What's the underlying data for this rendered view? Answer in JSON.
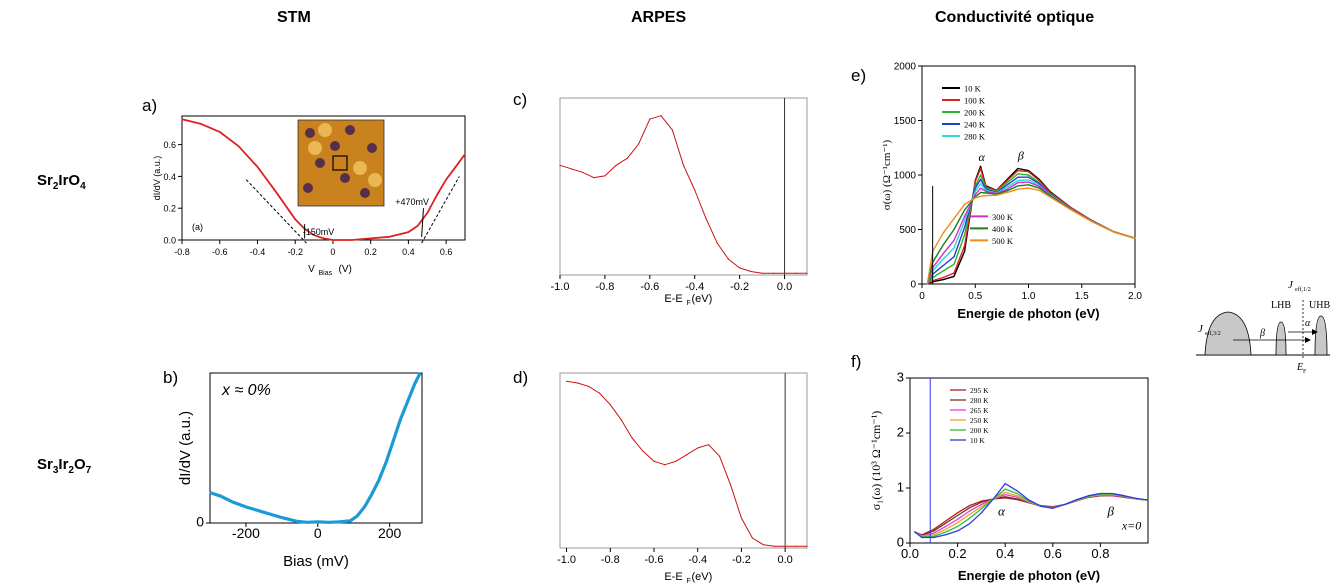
{
  "column_headers": [
    "STM",
    "ARPES",
    "Conductivité optique"
  ],
  "row_headers": [
    {
      "base": "Sr",
      "sub1": "2",
      "mid": "IrO",
      "sub2": "4"
    },
    {
      "base": "Sr",
      "sub1": "3",
      "mid": "Ir",
      "sub2": "2",
      "end": "O",
      "sub3": "7"
    }
  ],
  "panel_labels": [
    "a)",
    "b)",
    "c)",
    "d)",
    "e)",
    "f)"
  ],
  "chart_data": [
    {
      "id": "a",
      "type": "line",
      "xlabel": "V",
      "xlabel_sub": "Bias",
      "xlabel_unit": "(V)",
      "ylabel": "dI/dV (a.u.)",
      "xlim": [
        -0.8,
        0.7
      ],
      "ylim": [
        0.0,
        0.78
      ],
      "xticks": [
        "-0.8",
        "-0.6",
        "-0.4",
        "-0.2",
        "0",
        "0.2",
        "0.4",
        "0.6"
      ],
      "yticks": [
        "0.0",
        "0.2",
        "0.4",
        "0.6"
      ],
      "inset_label": "(a)",
      "annotations": [
        "-150mV",
        "+470mV"
      ],
      "series": [
        {
          "color": "#e02020",
          "x": [
            -0.8,
            -0.7,
            -0.6,
            -0.5,
            -0.4,
            -0.3,
            -0.2,
            -0.15,
            -0.1,
            -0.05,
            0.0,
            0.1,
            0.2,
            0.3,
            0.4,
            0.45,
            0.5,
            0.55,
            0.6,
            0.65,
            0.7
          ],
          "y": [
            0.76,
            0.73,
            0.68,
            0.59,
            0.46,
            0.3,
            0.13,
            0.07,
            0.03,
            0.01,
            0.0,
            0.0,
            0.01,
            0.02,
            0.05,
            0.09,
            0.17,
            0.28,
            0.38,
            0.46,
            0.54
          ]
        }
      ]
    },
    {
      "id": "b",
      "type": "line",
      "xlabel": "Bias (mV)",
      "ylabel": "dI/dV (a.u.)",
      "xlim": [
        -300,
        290
      ],
      "ylim": [
        0,
        4.2
      ],
      "xticks": [
        "-200",
        "0",
        "200"
      ],
      "yticks": [
        "0"
      ],
      "legend_text": "x ≈ 0%",
      "series": [
        {
          "color": "#1b9ad6",
          "x": [
            -300,
            -270,
            -240,
            -200,
            -150,
            -100,
            -60,
            -30,
            0,
            30,
            60,
            90,
            110,
            130,
            150,
            170,
            190,
            210,
            230,
            250,
            270,
            285
          ],
          "y": [
            0.85,
            0.75,
            0.6,
            0.45,
            0.3,
            0.15,
            0.05,
            0.02,
            0.03,
            0.02,
            0.03,
            0.06,
            0.2,
            0.45,
            0.8,
            1.2,
            1.7,
            2.3,
            2.9,
            3.4,
            3.9,
            4.2
          ]
        }
      ]
    },
    {
      "id": "c",
      "type": "line",
      "xlabel": "E-E",
      "xlabel_sub": "F",
      "xlabel_unit": " (eV)",
      "xlim": [
        -1.0,
        0.1
      ],
      "ylim": [
        0,
        1.0
      ],
      "xticks": [
        "-1.0",
        "-0.8",
        "-0.6",
        "-0.4",
        "-0.2",
        "0.0"
      ],
      "series": [
        {
          "color": "#cc1111",
          "x": [
            -1.0,
            -0.95,
            -0.9,
            -0.85,
            -0.8,
            -0.75,
            -0.7,
            -0.65,
            -0.6,
            -0.55,
            -0.5,
            -0.45,
            -0.4,
            -0.35,
            -0.3,
            -0.25,
            -0.2,
            -0.15,
            -0.1,
            -0.05,
            0.0,
            0.05,
            0.1
          ],
          "y": [
            0.62,
            0.6,
            0.58,
            0.55,
            0.56,
            0.62,
            0.66,
            0.74,
            0.88,
            0.9,
            0.82,
            0.62,
            0.48,
            0.32,
            0.18,
            0.09,
            0.04,
            0.02,
            0.01,
            0.01,
            0.01,
            0.01,
            0.01
          ]
        }
      ]
    },
    {
      "id": "d",
      "type": "line",
      "xlabel": "E-E",
      "xlabel_sub": "F",
      "xlabel_unit": " (eV)",
      "xlim": [
        -1.03,
        0.1
      ],
      "ylim": [
        0,
        1.05
      ],
      "xticks": [
        "-1.0",
        "-0.8",
        "-0.6",
        "-0.4",
        "-0.2",
        "0.0"
      ],
      "series": [
        {
          "color": "#cc1111",
          "x": [
            -1.0,
            -0.95,
            -0.9,
            -0.85,
            -0.8,
            -0.75,
            -0.7,
            -0.65,
            -0.6,
            -0.55,
            -0.5,
            -0.45,
            -0.4,
            -0.35,
            -0.3,
            -0.25,
            -0.2,
            -0.15,
            -0.1,
            -0.05,
            0.0,
            0.05,
            0.1
          ],
          "y": [
            1.0,
            0.99,
            0.97,
            0.93,
            0.86,
            0.77,
            0.66,
            0.58,
            0.52,
            0.5,
            0.52,
            0.56,
            0.6,
            0.62,
            0.55,
            0.38,
            0.18,
            0.06,
            0.02,
            0.01,
            0.01,
            0.01,
            0.01
          ]
        }
      ]
    },
    {
      "id": "e",
      "type": "line",
      "xlabel": "Energie de photon (eV)",
      "ylabel": "σ(ω) (Ω⁻¹cm⁻¹)",
      "xlim": [
        0,
        2.0
      ],
      "ylim": [
        0,
        2000
      ],
      "xticks": [
        "0",
        "0.5",
        "1.0",
        "1.5",
        "2.0"
      ],
      "yticks": [
        "0",
        "500",
        "1000",
        "1500",
        "2000"
      ],
      "peak_labels": [
        "α",
        "β"
      ],
      "series": [
        {
          "name": "10 K",
          "color": "#000000",
          "x": [
            0.05,
            0.1,
            0.2,
            0.3,
            0.4,
            0.5,
            0.55,
            0.6,
            0.7,
            0.8,
            0.9,
            1.0,
            1.1,
            1.2,
            1.4,
            1.6,
            1.8,
            2.0
          ],
          "y": [
            0,
            20,
            40,
            70,
            300,
            950,
            1080,
            900,
            860,
            960,
            1060,
            1040,
            960,
            850,
            700,
            580,
            480,
            420
          ]
        },
        {
          "name": "100 K",
          "color": "#e02020",
          "x": [
            0.05,
            0.1,
            0.2,
            0.3,
            0.4,
            0.5,
            0.55,
            0.6,
            0.7,
            0.8,
            0.9,
            1.0,
            1.1,
            1.2,
            1.4,
            1.6,
            1.8,
            2.0
          ],
          "y": [
            0,
            30,
            60,
            100,
            350,
            940,
            1060,
            890,
            860,
            950,
            1040,
            1030,
            950,
            840,
            700,
            580,
            480,
            420
          ]
        },
        {
          "name": "200 K",
          "color": "#2fb52f",
          "x": [
            0.05,
            0.1,
            0.2,
            0.3,
            0.4,
            0.5,
            0.55,
            0.6,
            0.7,
            0.8,
            0.9,
            1.0,
            1.1,
            1.2,
            1.4,
            1.6,
            1.8,
            2.0
          ],
          "y": [
            0,
            60,
            120,
            180,
            450,
            900,
            1000,
            880,
            850,
            930,
            1010,
            1000,
            930,
            830,
            690,
            575,
            478,
            420
          ]
        },
        {
          "name": "240 K",
          "color": "#2240d0",
          "x": [
            0.05,
            0.1,
            0.2,
            0.3,
            0.4,
            0.5,
            0.55,
            0.6,
            0.7,
            0.8,
            0.9,
            1.0,
            1.1,
            1.2,
            1.4,
            1.6,
            1.8,
            2.0
          ],
          "y": [
            0,
            90,
            170,
            250,
            520,
            880,
            960,
            870,
            840,
            910,
            980,
            980,
            920,
            825,
            690,
            575,
            478,
            420
          ]
        },
        {
          "name": "280 K",
          "color": "#30d6d6",
          "x": [
            0.05,
            0.1,
            0.2,
            0.3,
            0.4,
            0.5,
            0.55,
            0.6,
            0.7,
            0.8,
            0.9,
            1.0,
            1.1,
            1.2,
            1.4,
            1.6,
            1.8,
            2.0
          ],
          "y": [
            0,
            120,
            230,
            330,
            580,
            850,
            920,
            860,
            835,
            890,
            950,
            955,
            905,
            820,
            688,
            574,
            478,
            420
          ]
        },
        {
          "name": "300 K",
          "color": "#d030d0",
          "x": [
            0.05,
            0.1,
            0.2,
            0.3,
            0.4,
            0.5,
            0.55,
            0.6,
            0.7,
            0.8,
            0.9,
            1.0,
            1.1,
            1.2,
            1.4,
            1.6,
            1.8,
            2.0
          ],
          "y": [
            0,
            150,
            280,
            400,
            620,
            820,
            880,
            850,
            830,
            870,
            930,
            935,
            895,
            815,
            686,
            573,
            478,
            420
          ]
        },
        {
          "name": "400 K",
          "color": "#1e7d1e",
          "x": [
            0.05,
            0.1,
            0.2,
            0.3,
            0.4,
            0.5,
            0.55,
            0.6,
            0.7,
            0.8,
            0.9,
            1.0,
            1.1,
            1.2,
            1.4,
            1.6,
            1.8,
            2.0
          ],
          "y": [
            0,
            200,
            360,
            500,
            680,
            800,
            840,
            835,
            825,
            855,
            900,
            910,
            880,
            810,
            684,
            572,
            478,
            420
          ]
        },
        {
          "name": "500 K",
          "color": "#f08a1c",
          "x": [
            0.05,
            0.1,
            0.2,
            0.3,
            0.4,
            0.5,
            0.55,
            0.6,
            0.7,
            0.8,
            0.9,
            1.0,
            1.1,
            1.2,
            1.4,
            1.6,
            1.8,
            2.0
          ],
          "y": [
            0,
            300,
            470,
            600,
            730,
            790,
            805,
            810,
            815,
            840,
            870,
            880,
            860,
            800,
            680,
            570,
            478,
            420
          ]
        }
      ]
    },
    {
      "id": "f",
      "type": "line",
      "xlabel": "Energie de photon (eV)",
      "ylabel": "σ₁(ω) (10³ Ω⁻¹cm⁻¹)",
      "xlim": [
        0,
        1.0
      ],
      "ylim": [
        0,
        3
      ],
      "xticks": [
        "0.0",
        "0.2",
        "0.4",
        "0.6",
        "0.8"
      ],
      "yticks": [
        "0",
        "1",
        "2",
        "3"
      ],
      "peak_labels": [
        "α",
        "β"
      ],
      "annotation": "x=0",
      "series": [
        {
          "name": "295 K",
          "color": "#c01818",
          "x": [
            0.02,
            0.05,
            0.1,
            0.15,
            0.2,
            0.25,
            0.3,
            0.35,
            0.4,
            0.45,
            0.5,
            0.55,
            0.6,
            0.65,
            0.7,
            0.75,
            0.8,
            0.85,
            0.9,
            0.95,
            1.0
          ],
          "y": [
            0.2,
            0.15,
            0.25,
            0.4,
            0.55,
            0.68,
            0.76,
            0.8,
            0.82,
            0.79,
            0.73,
            0.68,
            0.66,
            0.7,
            0.77,
            0.83,
            0.86,
            0.86,
            0.83,
            0.8,
            0.78
          ]
        },
        {
          "name": "280 K",
          "color": "#6b3a1f",
          "x": [
            0.02,
            0.05,
            0.1,
            0.15,
            0.2,
            0.25,
            0.3,
            0.35,
            0.4,
            0.45,
            0.5,
            0.55,
            0.6,
            0.65,
            0.7,
            0.75,
            0.8,
            0.85,
            0.9,
            0.95,
            1.0
          ],
          "y": [
            0.2,
            0.14,
            0.22,
            0.36,
            0.5,
            0.64,
            0.74,
            0.8,
            0.84,
            0.8,
            0.73,
            0.67,
            0.65,
            0.7,
            0.77,
            0.83,
            0.86,
            0.87,
            0.84,
            0.8,
            0.78
          ]
        },
        {
          "name": "265 K",
          "color": "#e040e0",
          "x": [
            0.02,
            0.05,
            0.1,
            0.15,
            0.2,
            0.25,
            0.3,
            0.35,
            0.4,
            0.45,
            0.5,
            0.55,
            0.6,
            0.65,
            0.7,
            0.75,
            0.8,
            0.85,
            0.9,
            0.95,
            1.0
          ],
          "y": [
            0.2,
            0.13,
            0.18,
            0.3,
            0.43,
            0.58,
            0.7,
            0.8,
            0.88,
            0.83,
            0.74,
            0.67,
            0.65,
            0.7,
            0.77,
            0.84,
            0.87,
            0.87,
            0.84,
            0.8,
            0.78
          ]
        },
        {
          "name": "250 K",
          "color": "#e8a23a",
          "x": [
            0.02,
            0.05,
            0.1,
            0.15,
            0.2,
            0.25,
            0.3,
            0.35,
            0.4,
            0.45,
            0.5,
            0.55,
            0.6,
            0.65,
            0.7,
            0.75,
            0.8,
            0.85,
            0.9,
            0.95,
            1.0
          ],
          "y": [
            0.2,
            0.12,
            0.15,
            0.25,
            0.37,
            0.52,
            0.66,
            0.8,
            0.92,
            0.86,
            0.75,
            0.67,
            0.64,
            0.7,
            0.78,
            0.84,
            0.88,
            0.88,
            0.85,
            0.8,
            0.78
          ]
        },
        {
          "name": "200 K",
          "color": "#30c030",
          "x": [
            0.02,
            0.05,
            0.1,
            0.15,
            0.2,
            0.25,
            0.3,
            0.35,
            0.4,
            0.45,
            0.5,
            0.55,
            0.6,
            0.65,
            0.7,
            0.75,
            0.8,
            0.85,
            0.9,
            0.95,
            1.0
          ],
          "y": [
            0.2,
            0.11,
            0.12,
            0.2,
            0.3,
            0.45,
            0.62,
            0.8,
            0.98,
            0.9,
            0.76,
            0.67,
            0.64,
            0.7,
            0.78,
            0.85,
            0.89,
            0.89,
            0.85,
            0.81,
            0.78
          ]
        },
        {
          "name": "10 K",
          "color": "#2a3ce0",
          "x": [
            0.02,
            0.05,
            0.1,
            0.15,
            0.2,
            0.25,
            0.3,
            0.35,
            0.4,
            0.45,
            0.5,
            0.55,
            0.6,
            0.65,
            0.7,
            0.75,
            0.8,
            0.85,
            0.9,
            0.95,
            1.0
          ],
          "y": [
            0.2,
            0.1,
            0.1,
            0.15,
            0.22,
            0.35,
            0.55,
            0.8,
            1.08,
            0.95,
            0.78,
            0.67,
            0.63,
            0.7,
            0.79,
            0.86,
            0.9,
            0.9,
            0.86,
            0.81,
            0.78
          ]
        }
      ]
    }
  ],
  "schematic": {
    "labels": [
      "J",
      "eff,3/2",
      "J",
      "eff,1/2",
      "LHB",
      "UHB",
      "β",
      "α",
      "E",
      "F"
    ]
  }
}
